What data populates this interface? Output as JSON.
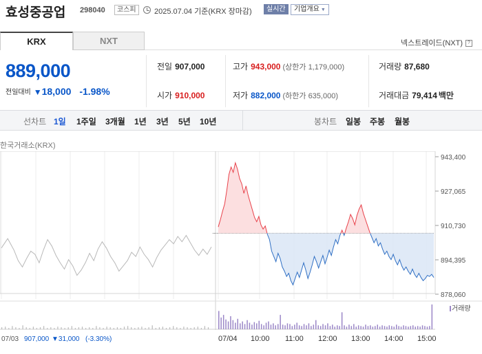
{
  "header": {
    "name": "효성중공업",
    "code": "298040",
    "market": "코스피",
    "basis": "2025.07.04 기준(KRX 장마감)",
    "realtime": "실시간",
    "company_info": "기업개요"
  },
  "tabs": [
    {
      "label": "KRX",
      "active": true
    },
    {
      "label": "NXT",
      "active": false
    }
  ],
  "nxt_trade": "넥스트레이드(NXT)",
  "price": {
    "current": "889,000",
    "change_label": "전일대비",
    "change": "18,000",
    "change_pct": "-1.98%"
  },
  "quotes": {
    "prev_label": "전일",
    "prev": "907,000",
    "high_label": "고가",
    "high": "943,000",
    "upper_limit": "(상한가 1,179,000)",
    "volume_label": "거래량",
    "volume": "87,680",
    "open_label": "시가",
    "open": "910,000",
    "low_label": "저가",
    "low": "882,000",
    "lower_limit": "(하한가 635,000)",
    "amount_label": "거래대금",
    "amount": "79,414",
    "amount_unit": "백만"
  },
  "periods": {
    "line_label": "선차트",
    "line_items": [
      "1일",
      "1주일",
      "3개월",
      "1년",
      "3년",
      "5년",
      "10년"
    ],
    "active": "1일",
    "candle_label": "봉차트",
    "candle_items": [
      "일봉",
      "주봉",
      "월봉"
    ]
  },
  "chart_caption": "한국거래소(KRX)",
  "chart_data": {
    "type": "line",
    "y_ticks": [
      "943,400",
      "927,065",
      "910,730",
      "894,395",
      "878,060"
    ],
    "ylim": [
      878060,
      943400
    ],
    "baseline": 907000,
    "x_labels": [
      "07/03",
      "07/04",
      "10:00",
      "11:00",
      "12:00",
      "13:00",
      "14:00",
      "15:00"
    ],
    "volume_legend": "거래량",
    "prev_day_summary": {
      "date": "07/03",
      "close": "907,000",
      "change": "▼31,000",
      "pct": "(-3.30%)"
    },
    "colors": {
      "up": "#e8414a",
      "down": "#2f6fc4",
      "up_fill": "#fbd9da",
      "down_fill": "#dbe6f6",
      "prev": "#b8b8b8",
      "volume": "#9a86c7"
    },
    "prev_day_series": [
      [
        0,
        900000
      ],
      [
        3,
        904500
      ],
      [
        6,
        899000
      ],
      [
        8,
        894000
      ],
      [
        10,
        891000
      ],
      [
        12,
        895000
      ],
      [
        14,
        898500
      ],
      [
        16,
        897000
      ],
      [
        18,
        893000
      ],
      [
        20,
        899000
      ],
      [
        22,
        904000
      ],
      [
        24,
        901000
      ],
      [
        26,
        896500
      ],
      [
        28,
        893000
      ],
      [
        30,
        890000
      ],
      [
        32,
        894500
      ],
      [
        34,
        891500
      ],
      [
        36,
        887000
      ],
      [
        38,
        889500
      ],
      [
        40,
        893000
      ],
      [
        42,
        897500
      ],
      [
        44,
        894000
      ],
      [
        46,
        899500
      ],
      [
        48,
        903000
      ],
      [
        50,
        900000
      ],
      [
        52,
        896000
      ],
      [
        54,
        893000
      ],
      [
        56,
        889000
      ],
      [
        58,
        891500
      ],
      [
        60,
        894000
      ],
      [
        62,
        898000
      ],
      [
        64,
        896000
      ],
      [
        66,
        900500
      ],
      [
        68,
        897000
      ],
      [
        70,
        894500
      ],
      [
        72,
        891000
      ],
      [
        74,
        895500
      ],
      [
        76,
        899000
      ],
      [
        78,
        901500
      ],
      [
        80,
        904000
      ],
      [
        82,
        902000
      ],
      [
        84,
        905500
      ],
      [
        86,
        903000
      ],
      [
        88,
        906000
      ],
      [
        90,
        902500
      ],
      [
        92,
        899000
      ],
      [
        94,
        896500
      ],
      [
        96,
        899500
      ],
      [
        98,
        897000
      ],
      [
        100,
        900500
      ]
    ],
    "today_series": [
      [
        0,
        910000
      ],
      [
        1,
        913500
      ],
      [
        2,
        917500
      ],
      [
        3,
        921000
      ],
      [
        4,
        927500
      ],
      [
        5,
        935000
      ],
      [
        6,
        938500
      ],
      [
        7,
        936000
      ],
      [
        8,
        940500
      ],
      [
        9,
        937500
      ],
      [
        10,
        933000
      ],
      [
        11,
        930500
      ],
      [
        12,
        926000
      ],
      [
        13,
        929500
      ],
      [
        14,
        925000
      ],
      [
        15,
        921500
      ],
      [
        16,
        918000
      ],
      [
        17,
        914500
      ],
      [
        18,
        912500
      ],
      [
        19,
        915000
      ],
      [
        20,
        911000
      ],
      [
        21,
        909000
      ],
      [
        22,
        910500
      ],
      [
        23,
        906500
      ],
      [
        24,
        904000
      ],
      [
        25,
        898500
      ],
      [
        26,
        896000
      ],
      [
        27,
        893500
      ],
      [
        28,
        897500
      ],
      [
        29,
        895000
      ],
      [
        30,
        891000
      ],
      [
        31,
        889000
      ],
      [
        32,
        886500
      ],
      [
        33,
        888000
      ],
      [
        34,
        884500
      ],
      [
        35,
        882500
      ],
      [
        36,
        885500
      ],
      [
        37,
        888500
      ],
      [
        38,
        886000
      ],
      [
        39,
        889500
      ],
      [
        40,
        893000
      ],
      [
        41,
        889500
      ],
      [
        42,
        885500
      ],
      [
        43,
        888500
      ],
      [
        44,
        892000
      ],
      [
        45,
        896000
      ],
      [
        46,
        893500
      ],
      [
        47,
        890500
      ],
      [
        48,
        893500
      ],
      [
        49,
        896500
      ],
      [
        50,
        892500
      ],
      [
        51,
        895500
      ],
      [
        52,
        899000
      ],
      [
        53,
        896500
      ],
      [
        54,
        900500
      ],
      [
        55,
        904000
      ],
      [
        56,
        902000
      ],
      [
        57,
        906000
      ],
      [
        58,
        908500
      ],
      [
        59,
        906000
      ],
      [
        60,
        909500
      ],
      [
        61,
        912500
      ],
      [
        62,
        916000
      ],
      [
        63,
        914000
      ],
      [
        64,
        911000
      ],
      [
        65,
        915500
      ],
      [
        66,
        918500
      ],
      [
        67,
        920500
      ],
      [
        68,
        916500
      ],
      [
        69,
        913500
      ],
      [
        70,
        910500
      ],
      [
        71,
        907500
      ],
      [
        72,
        905000
      ],
      [
        73,
        902500
      ],
      [
        74,
        904500
      ],
      [
        75,
        901000
      ],
      [
        76,
        902500
      ],
      [
        77,
        899500
      ],
      [
        78,
        897000
      ],
      [
        79,
        898500
      ],
      [
        80,
        896000
      ],
      [
        81,
        894500
      ],
      [
        82,
        897000
      ],
      [
        83,
        894000
      ],
      [
        84,
        892000
      ],
      [
        85,
        894500
      ],
      [
        86,
        891500
      ],
      [
        87,
        889500
      ],
      [
        88,
        891000
      ],
      [
        89,
        889000
      ],
      [
        90,
        887500
      ],
      [
        91,
        890000
      ],
      [
        92,
        887500
      ],
      [
        93,
        886000
      ],
      [
        94,
        888000
      ],
      [
        95,
        886000
      ],
      [
        96,
        884500
      ],
      [
        97,
        885500
      ],
      [
        98,
        887000
      ],
      [
        99,
        886500
      ],
      [
        100,
        887500
      ],
      [
        101,
        886000
      ]
    ],
    "prev_volumes": [
      3,
      4,
      2,
      5,
      3,
      2,
      6,
      3,
      2,
      4,
      2,
      3,
      5,
      2,
      3,
      2,
      4,
      3,
      2,
      3,
      5,
      2,
      3,
      4,
      2,
      3,
      2,
      5,
      3,
      2,
      4,
      3,
      2,
      3,
      2,
      4,
      5,
      3,
      2,
      3,
      4,
      2,
      3,
      6,
      2,
      3,
      4,
      2,
      3,
      5,
      3,
      2,
      4,
      3,
      2,
      3,
      4,
      2,
      5,
      3
    ],
    "today_volumes": [
      28,
      18,
      22,
      15,
      12,
      20,
      14,
      10,
      16,
      9,
      12,
      8,
      14,
      10,
      7,
      11,
      9,
      13,
      8,
      6,
      10,
      12,
      7,
      9,
      6,
      8,
      22,
      7,
      6,
      9,
      8,
      5,
      7,
      10,
      6,
      5,
      8,
      6,
      9,
      5,
      7,
      14,
      6,
      5,
      8,
      6,
      9,
      5,
      7,
      4,
      6,
      5,
      26,
      6,
      4,
      7,
      5,
      8,
      4,
      6,
      5,
      4,
      7,
      5,
      6,
      4,
      5,
      7,
      4,
      6,
      5,
      4,
      6,
      5,
      4,
      7,
      5,
      4,
      6,
      5,
      4,
      5,
      6,
      4,
      5,
      4,
      6,
      5,
      4,
      5,
      38
    ]
  }
}
